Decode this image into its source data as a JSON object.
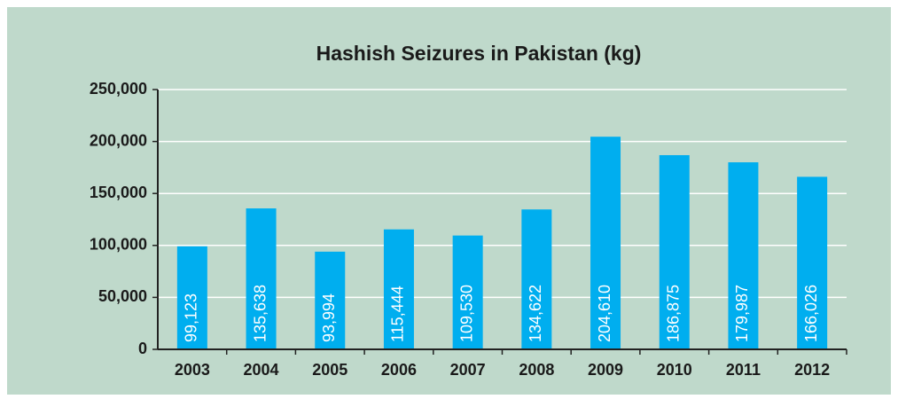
{
  "chart_data": {
    "type": "bar",
    "title": "Hashish Seizures in Pakistan (kg)",
    "categories": [
      "2003",
      "2004",
      "2005",
      "2006",
      "2007",
      "2008",
      "2009",
      "2010",
      "2011",
      "2012"
    ],
    "values": [
      99123,
      135638,
      93994,
      115444,
      109530,
      134622,
      204610,
      186875,
      179987,
      166026
    ],
    "value_labels": [
      "99,123",
      "135,638",
      "93,994",
      "115,444",
      "109,530",
      "134,622",
      "204,610",
      "186,875",
      "179,987",
      "166,026"
    ],
    "color": "#00aeef",
    "ylim": [
      0,
      250000
    ],
    "yticks": [
      0,
      {
        "value": 50000,
        "label": "50,000"
      },
      {
        "value": 100000,
        "label": "100,000"
      },
      {
        "value": 150000,
        "label": "150,000"
      },
      {
        "value": 200000,
        "label": "200,000"
      },
      {
        "value": 250000,
        "label": "250,000"
      }
    ],
    "grid": true
  }
}
